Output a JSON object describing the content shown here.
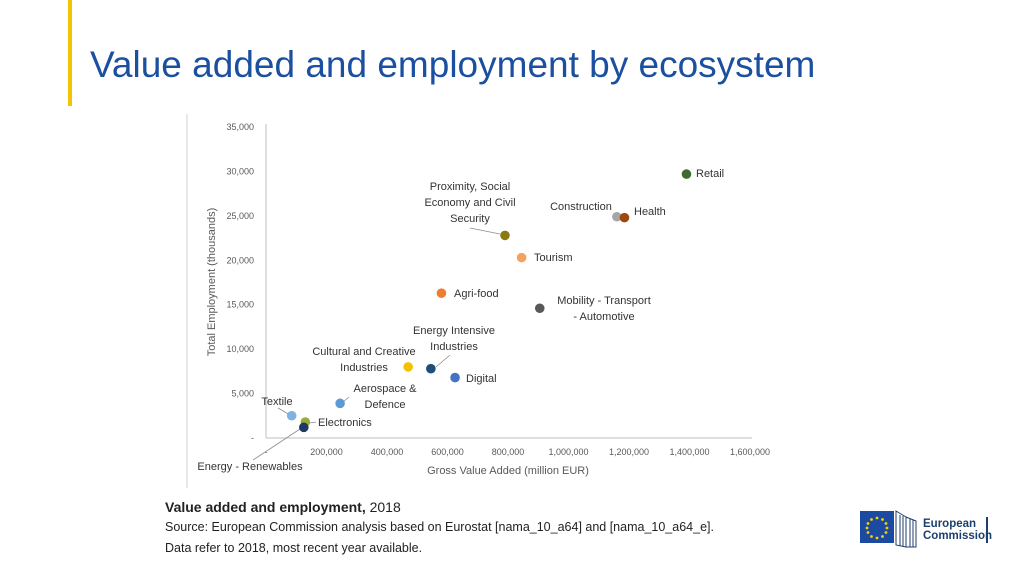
{
  "page": {
    "title": "Value added and employment by ecosystem"
  },
  "caption": {
    "bold": "Value added and employment,",
    "year": " 2018",
    "source": "Source: European Commission analysis based on Eurostat [nama_10_a64] and [nama_10_a64_e].",
    "note": "Data refer to 2018, most recent year available."
  },
  "logo": {
    "line1": "European",
    "line2": "Commission"
  },
  "chart_data": {
    "type": "scatter",
    "xlabel": "Gross Value Added (million EUR)",
    "ylabel": "Total Employment (thousands)",
    "xlim": [
      0,
      1600000
    ],
    "ylim": [
      0,
      35000
    ],
    "x_ticks": [
      {
        "value": 200000,
        "label": "200,000"
      },
      {
        "value": 400000,
        "label": "400,000"
      },
      {
        "value": 600000,
        "label": "600,000"
      },
      {
        "value": 800000,
        "label": "800,000"
      },
      {
        "value": 1000000,
        "label": "1,000,000"
      },
      {
        "value": 1200000,
        "label": "1,200,000"
      },
      {
        "value": 1400000,
        "label": "1,400,000"
      },
      {
        "value": 1600000,
        "label": "1,600,000"
      }
    ],
    "x_zero_label": "-",
    "y_ticks": [
      {
        "value": 0,
        "label": "-"
      },
      {
        "value": 5000,
        "label": "5,000"
      },
      {
        "value": 10000,
        "label": "10,000"
      },
      {
        "value": 15000,
        "label": "15,000"
      },
      {
        "value": 20000,
        "label": "20,000"
      },
      {
        "value": 25000,
        "label": "25,000"
      },
      {
        "value": 30000,
        "label": "30,000"
      },
      {
        "value": 35000,
        "label": "35,000"
      }
    ],
    "grid": false,
    "legend": "none",
    "points": [
      {
        "label": "Retail",
        "x": 1390000,
        "y": 29700,
        "color": "#3f6b2f"
      },
      {
        "label": "Construction",
        "x": 1160000,
        "y": 24900,
        "color": "#a6a6a6"
      },
      {
        "label": "Health",
        "x": 1185000,
        "y": 24800,
        "color": "#9e480e"
      },
      {
        "label": "Proximity, Social Economy and Civil Security",
        "x": 790000,
        "y": 22800,
        "color": "#8c7a0e"
      },
      {
        "label": "Tourism",
        "x": 845000,
        "y": 20300,
        "color": "#f4a261"
      },
      {
        "label": "Agri-food",
        "x": 580000,
        "y": 16300,
        "color": "#ed7d31"
      },
      {
        "label": "Mobility - Transport - Automotive",
        "x": 905000,
        "y": 14600,
        "color": "#595959"
      },
      {
        "label": "Energy Intensive Industries",
        "x": 545000,
        "y": 7800,
        "color": "#1f4e79"
      },
      {
        "label": "Digital",
        "x": 625000,
        "y": 6800,
        "color": "#4472c4"
      },
      {
        "label": "Cultural and Creative Industries",
        "x": 470000,
        "y": 8000,
        "color": "#f2c200"
      },
      {
        "label": "Aerospace & Defence",
        "x": 245000,
        "y": 3900,
        "color": "#5b9bd5"
      },
      {
        "label": "Textile",
        "x": 85000,
        "y": 2500,
        "color": "#7fb2e0"
      },
      {
        "label": "Electronics",
        "x": 130000,
        "y": 1800,
        "color": "#9aab3a"
      },
      {
        "label": "Energy - Renewables",
        "x": 125000,
        "y": 1200,
        "color": "#1f3864"
      }
    ]
  }
}
